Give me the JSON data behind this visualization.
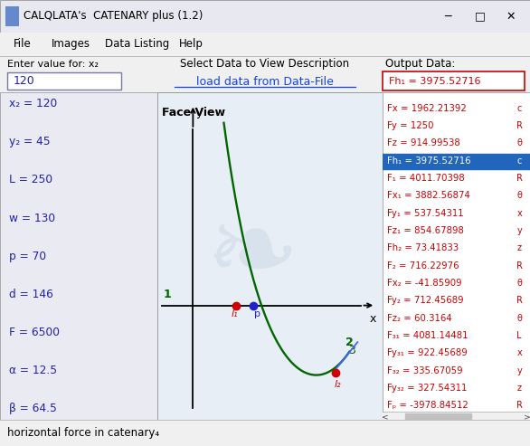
{
  "title": "CALQLATA's  CATENARY plus (1.2)",
  "menu_items": [
    "File",
    "Images",
    "Data Listing",
    "Help"
  ],
  "input_label": "Enter value for: x₂",
  "input_value": "120",
  "center_label": "Select Data to View Description",
  "center_link": "load data from Data-File",
  "output_label": "Output Data:",
  "output_highlight": "Fh₁ = 3975.52716",
  "left_params": [
    "x₂ = 120",
    "y₂ = 45",
    "L = 250",
    "w = 130",
    "p = 70",
    "d = 146",
    "F = 6500",
    "α = 12.5",
    "β = 64.5"
  ],
  "right_data": [
    "Fx = 1962.21392",
    "Fy = 1250",
    "Fz = 914.99538",
    "Fh₁ = 3975.52716",
    "F₁ = 4011.70398",
    "Fx₁ = 3882.56874",
    "Fy₁ = 537.54311",
    "Fz₁ = 854.67898",
    "Fh₂ = 73.41833",
    "F₂ = 716.22976",
    "Fx₂ = -41.85909",
    "Fy₂ = 712.45689",
    "Fz₂ = 60.3164",
    "F₃₁ = 4081.14481",
    "Fy₃₁ = 922.45689",
    "F₃₂ = 335.67059",
    "Fy₃₂ = 327.54311",
    "Fₚ = -3978.84512"
  ],
  "right_data_suffix": [
    "c",
    "R",
    "θ",
    "c",
    "R",
    "θ",
    "x",
    "y",
    "z",
    "R",
    "θ",
    "R",
    "θ",
    "L",
    "x",
    "y",
    "z",
    "R"
  ],
  "face_view_label": "Face View",
  "axis_x_label": "x",
  "axis_y_label": "y",
  "catenary_color": "#006600",
  "blue_line_color": "#4466ff",
  "bg_color": "#f0f0f0",
  "plot_bg": "#e8eef5",
  "highlight_bg": "#2266bb",
  "highlight_fg": "#ffffff",
  "status_bar": "horizontal force in catenary₄",
  "point1_color": "#cc0000",
  "point2_color": "#2222cc",
  "point3_color": "#cc0000",
  "label1": "l₁",
  "label2": "l₂",
  "labelp": "p",
  "title_bar_color": "#e8e8f0",
  "border_color": "#aaaaaa",
  "left_panel_color": "#eaeaf2",
  "right_panel_color": "#ffffff",
  "input_area_color": "#f5f5e0",
  "status_bar_color": "#f5f5e0",
  "red_text": "#cc0000",
  "blue_text": "#2222aa"
}
